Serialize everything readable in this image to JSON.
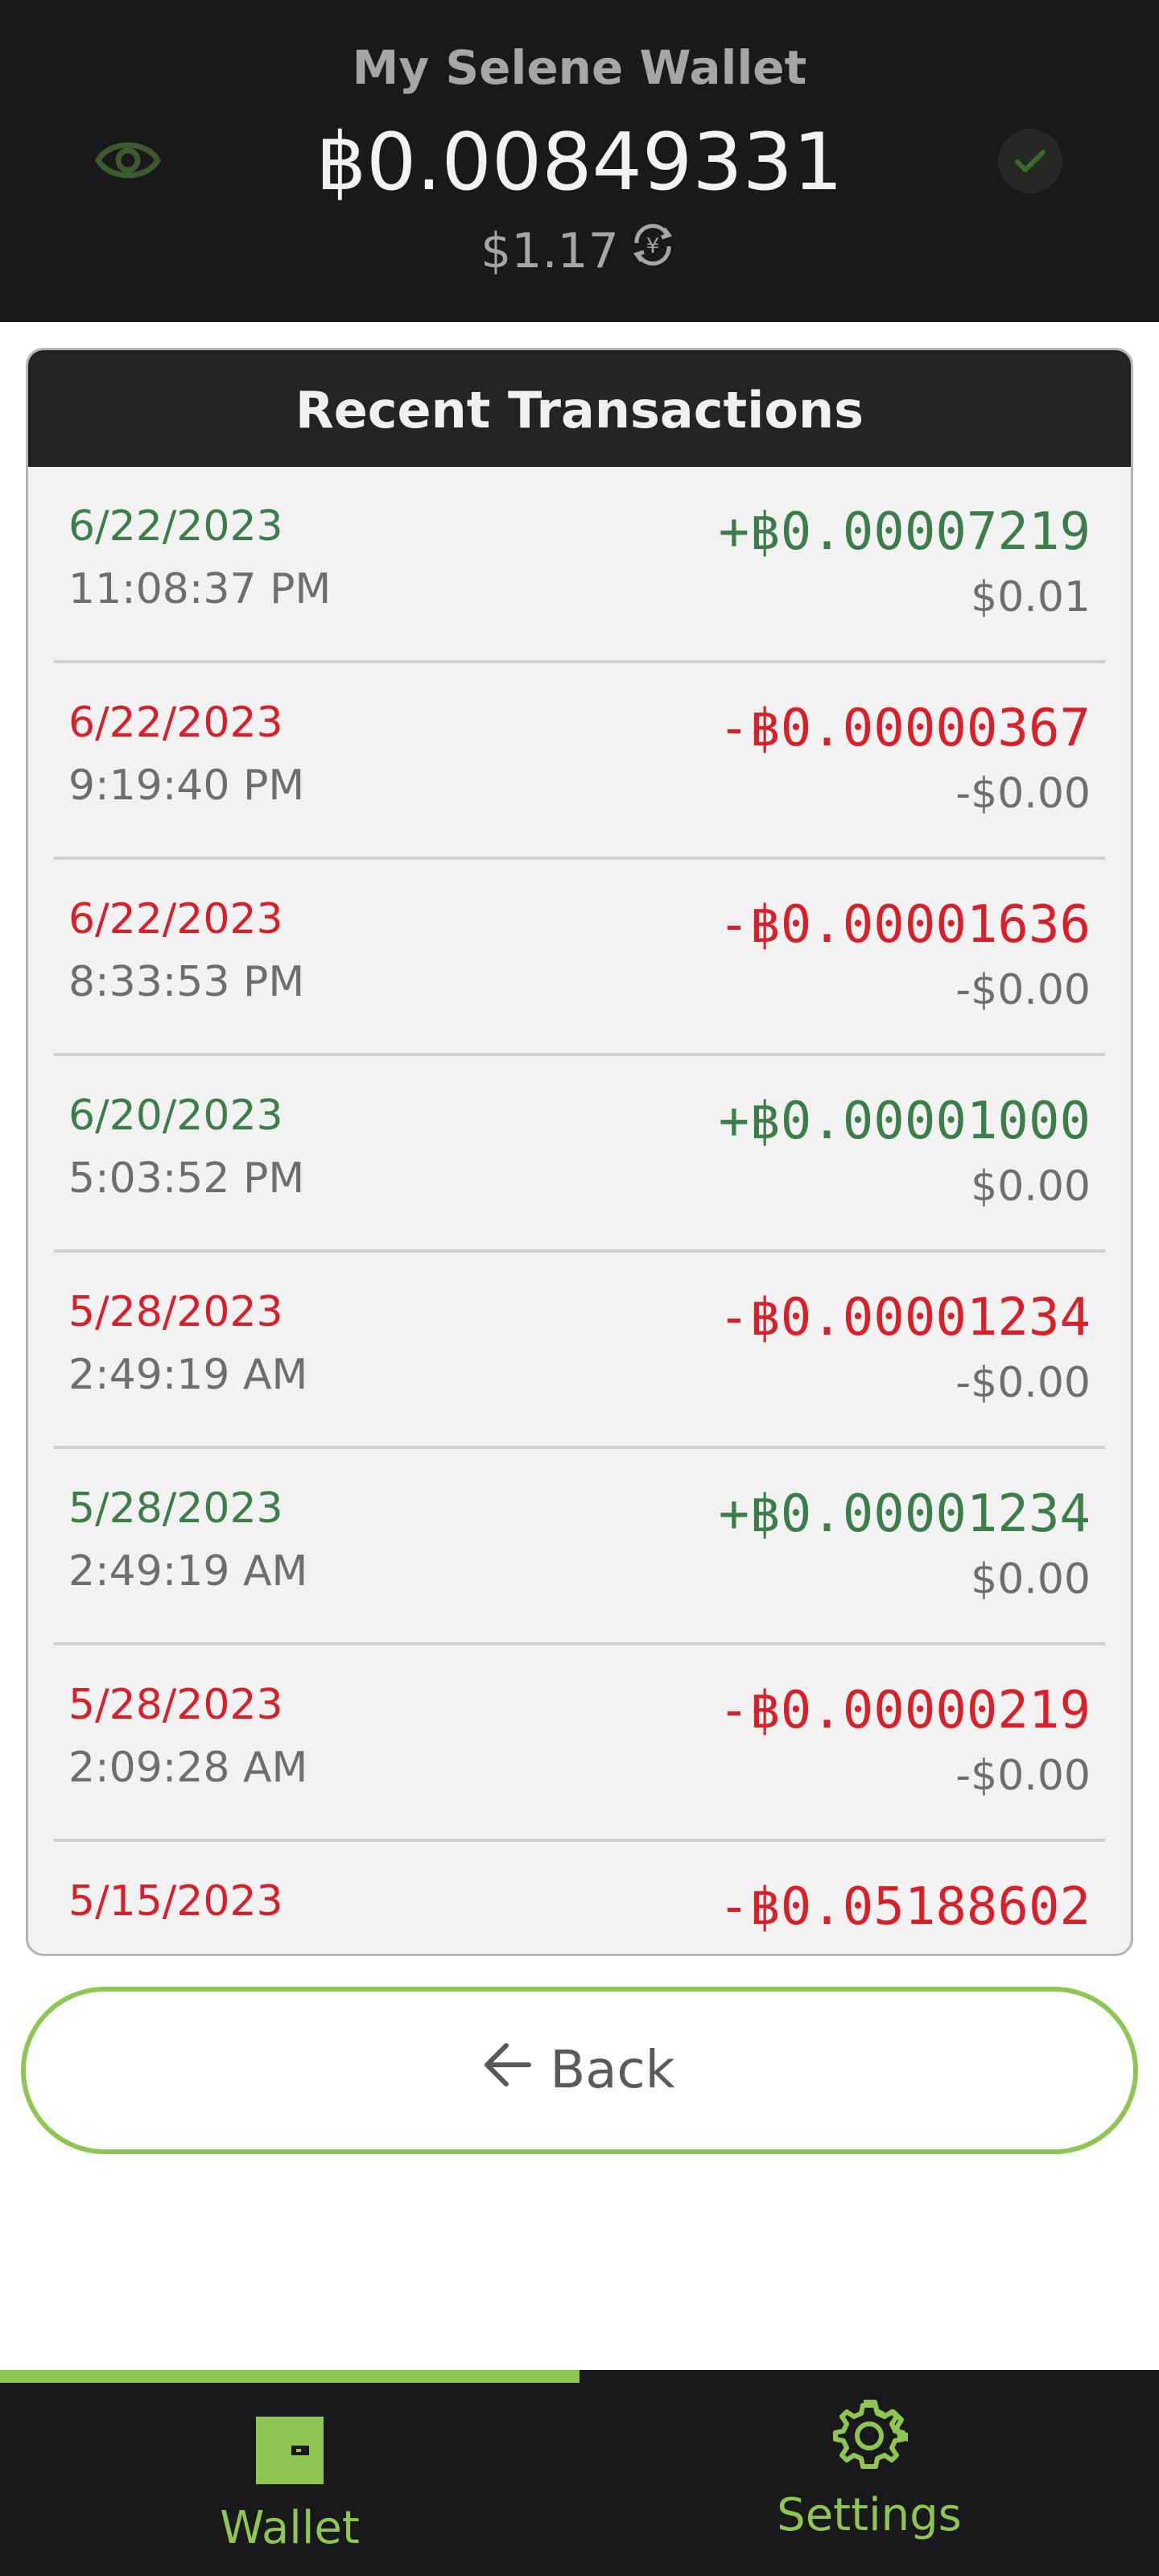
{
  "header": {
    "wallet_name": "My Selene Wallet",
    "balance": "฿0.00849331",
    "fiat_balance": "$1.17",
    "icons": [
      "eye-icon",
      "currency-exchange-icon",
      "check-icon"
    ]
  },
  "transactions": {
    "title": "Recent Transactions",
    "items": [
      {
        "date": "6/22/2023",
        "time": "11:08:37 PM",
        "amount": "+฿0.00007219",
        "fiat": "$0.01",
        "direction": "in"
      },
      {
        "date": "6/22/2023",
        "time": "9:19:40 PM",
        "amount": "-฿0.00000367",
        "fiat": "-$0.00",
        "direction": "out"
      },
      {
        "date": "6/22/2023",
        "time": "8:33:53 PM",
        "amount": "-฿0.00001636",
        "fiat": "-$0.00",
        "direction": "out"
      },
      {
        "date": "6/20/2023",
        "time": "5:03:52 PM",
        "amount": "+฿0.00001000",
        "fiat": "$0.00",
        "direction": "in"
      },
      {
        "date": "5/28/2023",
        "time": "2:49:19 AM",
        "amount": "-฿0.00001234",
        "fiat": "-$0.00",
        "direction": "out"
      },
      {
        "date": "5/28/2023",
        "time": "2:49:19 AM",
        "amount": "+฿0.00001234",
        "fiat": "$0.00",
        "direction": "in"
      },
      {
        "date": "5/28/2023",
        "time": "2:09:28 AM",
        "amount": "-฿0.00000219",
        "fiat": "-$0.00",
        "direction": "out"
      },
      {
        "date": "5/15/2023",
        "time": "",
        "amount": "-฿0.05188602",
        "fiat": "",
        "direction": "out"
      }
    ]
  },
  "back_button": {
    "label": "Back",
    "icon": "arrow-left-icon"
  },
  "nav": {
    "wallet_label": "Wallet",
    "settings_label": "Settings",
    "active": "Wallet",
    "icons": [
      "wallet-icon",
      "gear-icon"
    ]
  },
  "colors": {
    "accent": "#8fc552",
    "incoming": "#3d7d4a",
    "outgoing": "#d8202a",
    "dark_bg": "#19191b"
  }
}
